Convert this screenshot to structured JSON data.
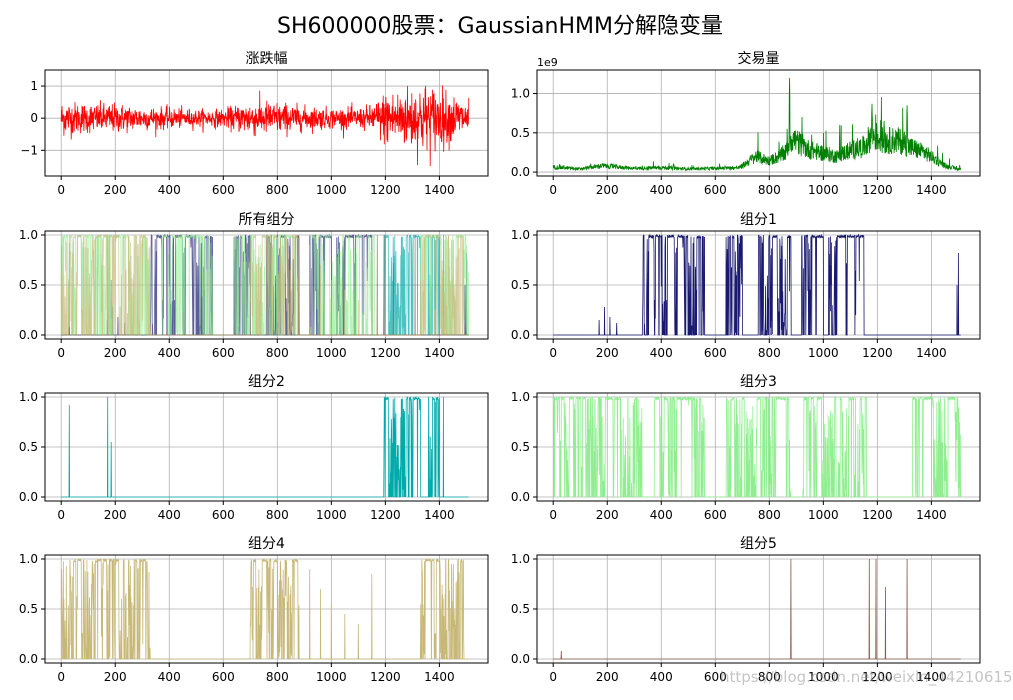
{
  "figure": {
    "suptitle": "SH600000股票：GaussianHMM分解隐变量",
    "watermark": "https://blog.csdn.net/weixin_44210615"
  },
  "chart_data": [
    {
      "type": "line",
      "title": "涨跌幅",
      "color": "#ff0000",
      "xlim": [
        -60,
        1580
      ],
      "ylim": [
        -1.8,
        1.5
      ],
      "xticks": [
        0,
        200,
        400,
        600,
        800,
        1000,
        1200,
        1400
      ],
      "yticks": [
        -1,
        0,
        1
      ],
      "ytick_labels": [
        "−1",
        "0",
        "1"
      ],
      "grid": true,
      "n_points": 1510,
      "envelope_x": [
        0,
        100,
        200,
        300,
        400,
        500,
        600,
        700,
        800,
        900,
        1000,
        1100,
        1150,
        1200,
        1250,
        1300,
        1350,
        1400,
        1450,
        1500
      ],
      "envelope_y": [
        0.6,
        0.5,
        0.5,
        0.4,
        0.35,
        0.3,
        0.3,
        0.6,
        0.55,
        0.4,
        0.35,
        0.35,
        0.45,
        0.9,
        0.95,
        1.1,
        1.2,
        1.0,
        0.8,
        0.6
      ]
    },
    {
      "type": "line",
      "title": "交易量",
      "color": "#008000",
      "offset_label": "1e9",
      "xlim": [
        -60,
        1580
      ],
      "ylim": [
        -0.05,
        1.3
      ],
      "xticks": [
        0,
        200,
        400,
        600,
        800,
        1000,
        1200,
        1400
      ],
      "yticks": [
        0.0,
        0.5,
        1.0
      ],
      "ytick_labels": [
        "0.0",
        "0.5",
        "1.0"
      ],
      "grid": true,
      "n_points": 1510,
      "base_x": [
        0,
        100,
        180,
        300,
        400,
        500,
        600,
        690,
        750,
        800,
        860,
        880,
        950,
        1000,
        1050,
        1100,
        1150,
        1180,
        1220,
        1280,
        1320,
        1380,
        1450,
        1500
      ],
      "base_y": [
        0.08,
        0.05,
        0.1,
        0.06,
        0.07,
        0.05,
        0.06,
        0.07,
        0.25,
        0.18,
        0.3,
        0.55,
        0.35,
        0.3,
        0.25,
        0.35,
        0.4,
        0.6,
        0.5,
        0.5,
        0.4,
        0.3,
        0.1,
        0.05
      ],
      "peaks": [
        {
          "x": 875,
          "y": 1.2
        },
        {
          "x": 1180,
          "y": 0.87
        },
        {
          "x": 1310,
          "y": 0.85
        },
        {
          "x": 1225,
          "y": 0.65
        }
      ]
    },
    {
      "type": "line",
      "title": "所有组分",
      "xlim": [
        -60,
        1580
      ],
      "ylim": [
        -0.04,
        1.04
      ],
      "xticks": [
        0,
        200,
        400,
        600,
        800,
        1000,
        1200,
        1400
      ],
      "yticks": [
        0.0,
        0.5,
        1.0
      ],
      "ytick_labels": [
        "0.0",
        "0.5",
        "1.0"
      ],
      "grid": true,
      "overlay": [
        1,
        2,
        3,
        4,
        5
      ]
    },
    {
      "type": "line",
      "title": "组分1",
      "color": "#191970",
      "xlim": [
        -60,
        1580
      ],
      "ylim": [
        -0.04,
        1.04
      ],
      "xticks": [
        0,
        200,
        400,
        600,
        800,
        1000,
        1200,
        1400
      ],
      "yticks": [
        0.0,
        0.5,
        1.0
      ],
      "ytick_labels": [
        "0.0",
        "0.5",
        "1.0"
      ],
      "grid": true,
      "segments": [
        [
          330,
          560
        ],
        [
          640,
          700
        ],
        [
          760,
          880
        ],
        [
          920,
          1000
        ],
        [
          1020,
          1150
        ]
      ],
      "spikes": [
        {
          "x": 170,
          "y": 0.15
        },
        {
          "x": 190,
          "y": 0.28
        },
        {
          "x": 210,
          "y": 0.18
        },
        {
          "x": 235,
          "y": 0.12
        },
        {
          "x": 1495,
          "y": 0.5
        },
        {
          "x": 1500,
          "y": 0.82
        }
      ]
    },
    {
      "type": "line",
      "title": "组分2",
      "color": "#00aaaa",
      "xlim": [
        -60,
        1580
      ],
      "ylim": [
        -0.04,
        1.04
      ],
      "xticks": [
        0,
        200,
        400,
        600,
        800,
        1000,
        1200,
        1400
      ],
      "yticks": [
        0.0,
        0.5,
        1.0
      ],
      "ytick_labels": [
        "0.0",
        "0.5",
        "1.0"
      ],
      "grid": true,
      "segments": [
        [
          1195,
          1330
        ],
        [
          1360,
          1400
        ]
      ],
      "spikes": [
        {
          "x": 30,
          "y": 0.92
        },
        {
          "x": 172,
          "y": 1.0
        },
        {
          "x": 185,
          "y": 0.55
        },
        {
          "x": 1250,
          "y": 0.28
        },
        {
          "x": 1415,
          "y": 1.0
        }
      ]
    },
    {
      "type": "line",
      "title": "组分3",
      "color": "#90ee90",
      "xlim": [
        -60,
        1580
      ],
      "ylim": [
        -0.04,
        1.04
      ],
      "xticks": [
        0,
        200,
        400,
        600,
        800,
        1000,
        1200,
        1400
      ],
      "yticks": [
        0.0,
        0.5,
        1.0
      ],
      "ytick_labels": [
        "0.0",
        "0.5",
        "1.0"
      ],
      "grid": true,
      "segments": [
        [
          0,
          700
        ],
        [
          700,
          1160
        ],
        [
          1330,
          1510
        ]
      ],
      "gaps": [
        [
          330,
          370
        ],
        [
          560,
          640
        ],
        [
          880,
          920
        ],
        [
          1160,
          1330
        ]
      ]
    },
    {
      "type": "line",
      "title": "组分4",
      "color": "#c8b878",
      "xlim": [
        -60,
        1580
      ],
      "ylim": [
        -0.04,
        1.04
      ],
      "xticks": [
        0,
        200,
        400,
        600,
        800,
        1000,
        1200,
        1400
      ],
      "yticks": [
        0.0,
        0.5,
        1.0
      ],
      "ytick_labels": [
        "0.0",
        "0.5",
        "1.0"
      ],
      "grid": true,
      "segments": [
        [
          0,
          330
        ],
        [
          700,
          880
        ],
        [
          1330,
          1490
        ]
      ],
      "spikes": [
        {
          "x": 920,
          "y": 0.9
        },
        {
          "x": 960,
          "y": 0.7
        },
        {
          "x": 1000,
          "y": 0.55
        },
        {
          "x": 1050,
          "y": 0.45
        },
        {
          "x": 1100,
          "y": 0.35
        },
        {
          "x": 1150,
          "y": 0.85
        }
      ]
    },
    {
      "type": "line",
      "title": "组分5",
      "color": "#8b5a4a",
      "xlim": [
        -60,
        1580
      ],
      "ylim": [
        -0.04,
        1.04
      ],
      "xticks": [
        0,
        200,
        400,
        600,
        800,
        1000,
        1200,
        1400
      ],
      "yticks": [
        0.0,
        0.5,
        1.0
      ],
      "ytick_labels": [
        "0.0",
        "0.5",
        "1.0"
      ],
      "grid": true,
      "spikes": [
        {
          "x": 30,
          "y": 0.08
        },
        {
          "x": 880,
          "y": 1.0
        },
        {
          "x": 1170,
          "y": 1.0
        },
        {
          "x": 1195,
          "y": 1.0
        },
        {
          "x": 1230,
          "y": 0.72
        },
        {
          "x": 1310,
          "y": 1.0
        }
      ]
    }
  ]
}
